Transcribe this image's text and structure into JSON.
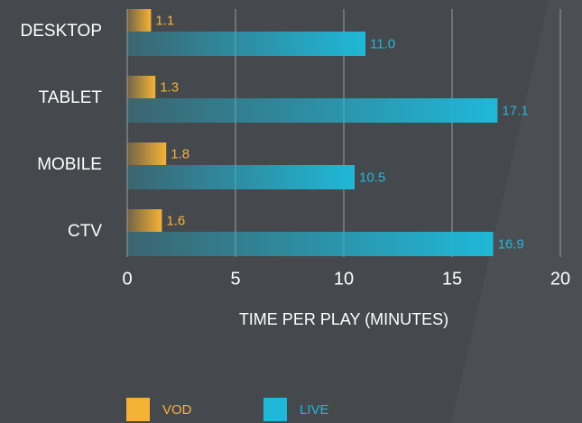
{
  "chart_data": {
    "type": "hbar",
    "categories": [
      "DESKTOP",
      "TABLET",
      "MOBILE",
      "CTV"
    ],
    "series": [
      {
        "name": "VOD",
        "color": "#f5b335",
        "values": [
          1.1,
          1.3,
          1.8,
          1.6
        ],
        "value_labels": [
          "1.1",
          "1.3",
          "1.8",
          "1.6"
        ]
      },
      {
        "name": "LIVE",
        "color": "#1fb8d8",
        "values": [
          11,
          17.1,
          10.5,
          16.9
        ],
        "value_labels": [
          "11.0",
          "17.1",
          "10.5",
          "16.9"
        ]
      }
    ],
    "xlim": [
      0,
      20
    ],
    "xticks": [
      0,
      5,
      10,
      15,
      20
    ],
    "x_label": "TIME PER PLAY (MINUTES)",
    "grid": true,
    "legend": "bottom"
  }
}
